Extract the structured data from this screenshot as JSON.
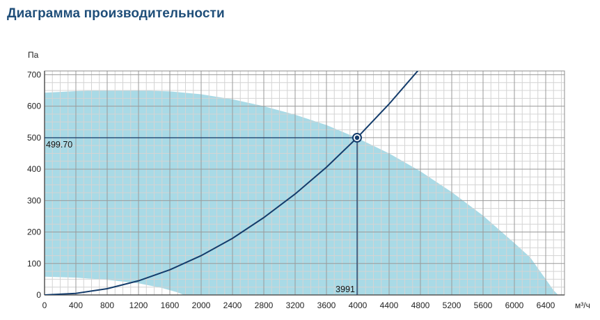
{
  "page": {
    "title": "Диаграмма производительности"
  },
  "chart_data": {
    "type": "area",
    "title": "Диаграмма производительности",
    "xlabel": "м³/ч",
    "ylabel": "Па",
    "xlim": [
      0,
      6650
    ],
    "ylim": [
      0,
      700
    ],
    "x_ticks": [
      0,
      400,
      800,
      1200,
      1600,
      2000,
      2400,
      2800,
      3200,
      3600,
      4000,
      4400,
      4800,
      5200,
      5600,
      6000,
      6400
    ],
    "y_ticks": [
      0,
      100,
      200,
      300,
      400,
      500,
      600,
      700
    ],
    "grid": true,
    "colors": {
      "working_area": "#a9dae6",
      "system_curve": "#143c6b",
      "grid_major": "#9a9a9a",
      "grid_minor": "#d4d4d4"
    },
    "working_area_upper": [
      {
        "x": 0,
        "y": 643
      },
      {
        "x": 400,
        "y": 648
      },
      {
        "x": 800,
        "y": 650
      },
      {
        "x": 1200,
        "y": 650
      },
      {
        "x": 1600,
        "y": 647
      },
      {
        "x": 2000,
        "y": 638
      },
      {
        "x": 2400,
        "y": 622
      },
      {
        "x": 2800,
        "y": 600
      },
      {
        "x": 3200,
        "y": 573
      },
      {
        "x": 3600,
        "y": 540
      },
      {
        "x": 4000,
        "y": 498
      },
      {
        "x": 4400,
        "y": 450
      },
      {
        "x": 4800,
        "y": 393
      },
      {
        "x": 5200,
        "y": 327
      },
      {
        "x": 5600,
        "y": 252
      },
      {
        "x": 6000,
        "y": 165
      },
      {
        "x": 6200,
        "y": 120
      },
      {
        "x": 6400,
        "y": 50
      },
      {
        "x": 6500,
        "y": 15
      },
      {
        "x": 6560,
        "y": 0
      }
    ],
    "working_area_lower": [
      {
        "x": 0,
        "y": 58
      },
      {
        "x": 400,
        "y": 55
      },
      {
        "x": 800,
        "y": 48
      },
      {
        "x": 1200,
        "y": 37
      },
      {
        "x": 1500,
        "y": 22
      },
      {
        "x": 1700,
        "y": 8
      },
      {
        "x": 1780,
        "y": 0
      }
    ],
    "series": [
      {
        "type": "line",
        "x": [
          0,
          400,
          800,
          1200,
          1600,
          2000,
          2400,
          2800,
          3200,
          3600,
          3991,
          4400,
          4800
        ],
        "y": [
          0,
          5,
          20,
          45,
          80,
          125,
          180,
          246,
          321,
          406,
          499.7,
          607,
          722
        ]
      }
    ],
    "operating_point": {
      "x": 3991,
      "y": 499.7,
      "x_label": "3991",
      "y_label": "499.70"
    }
  }
}
